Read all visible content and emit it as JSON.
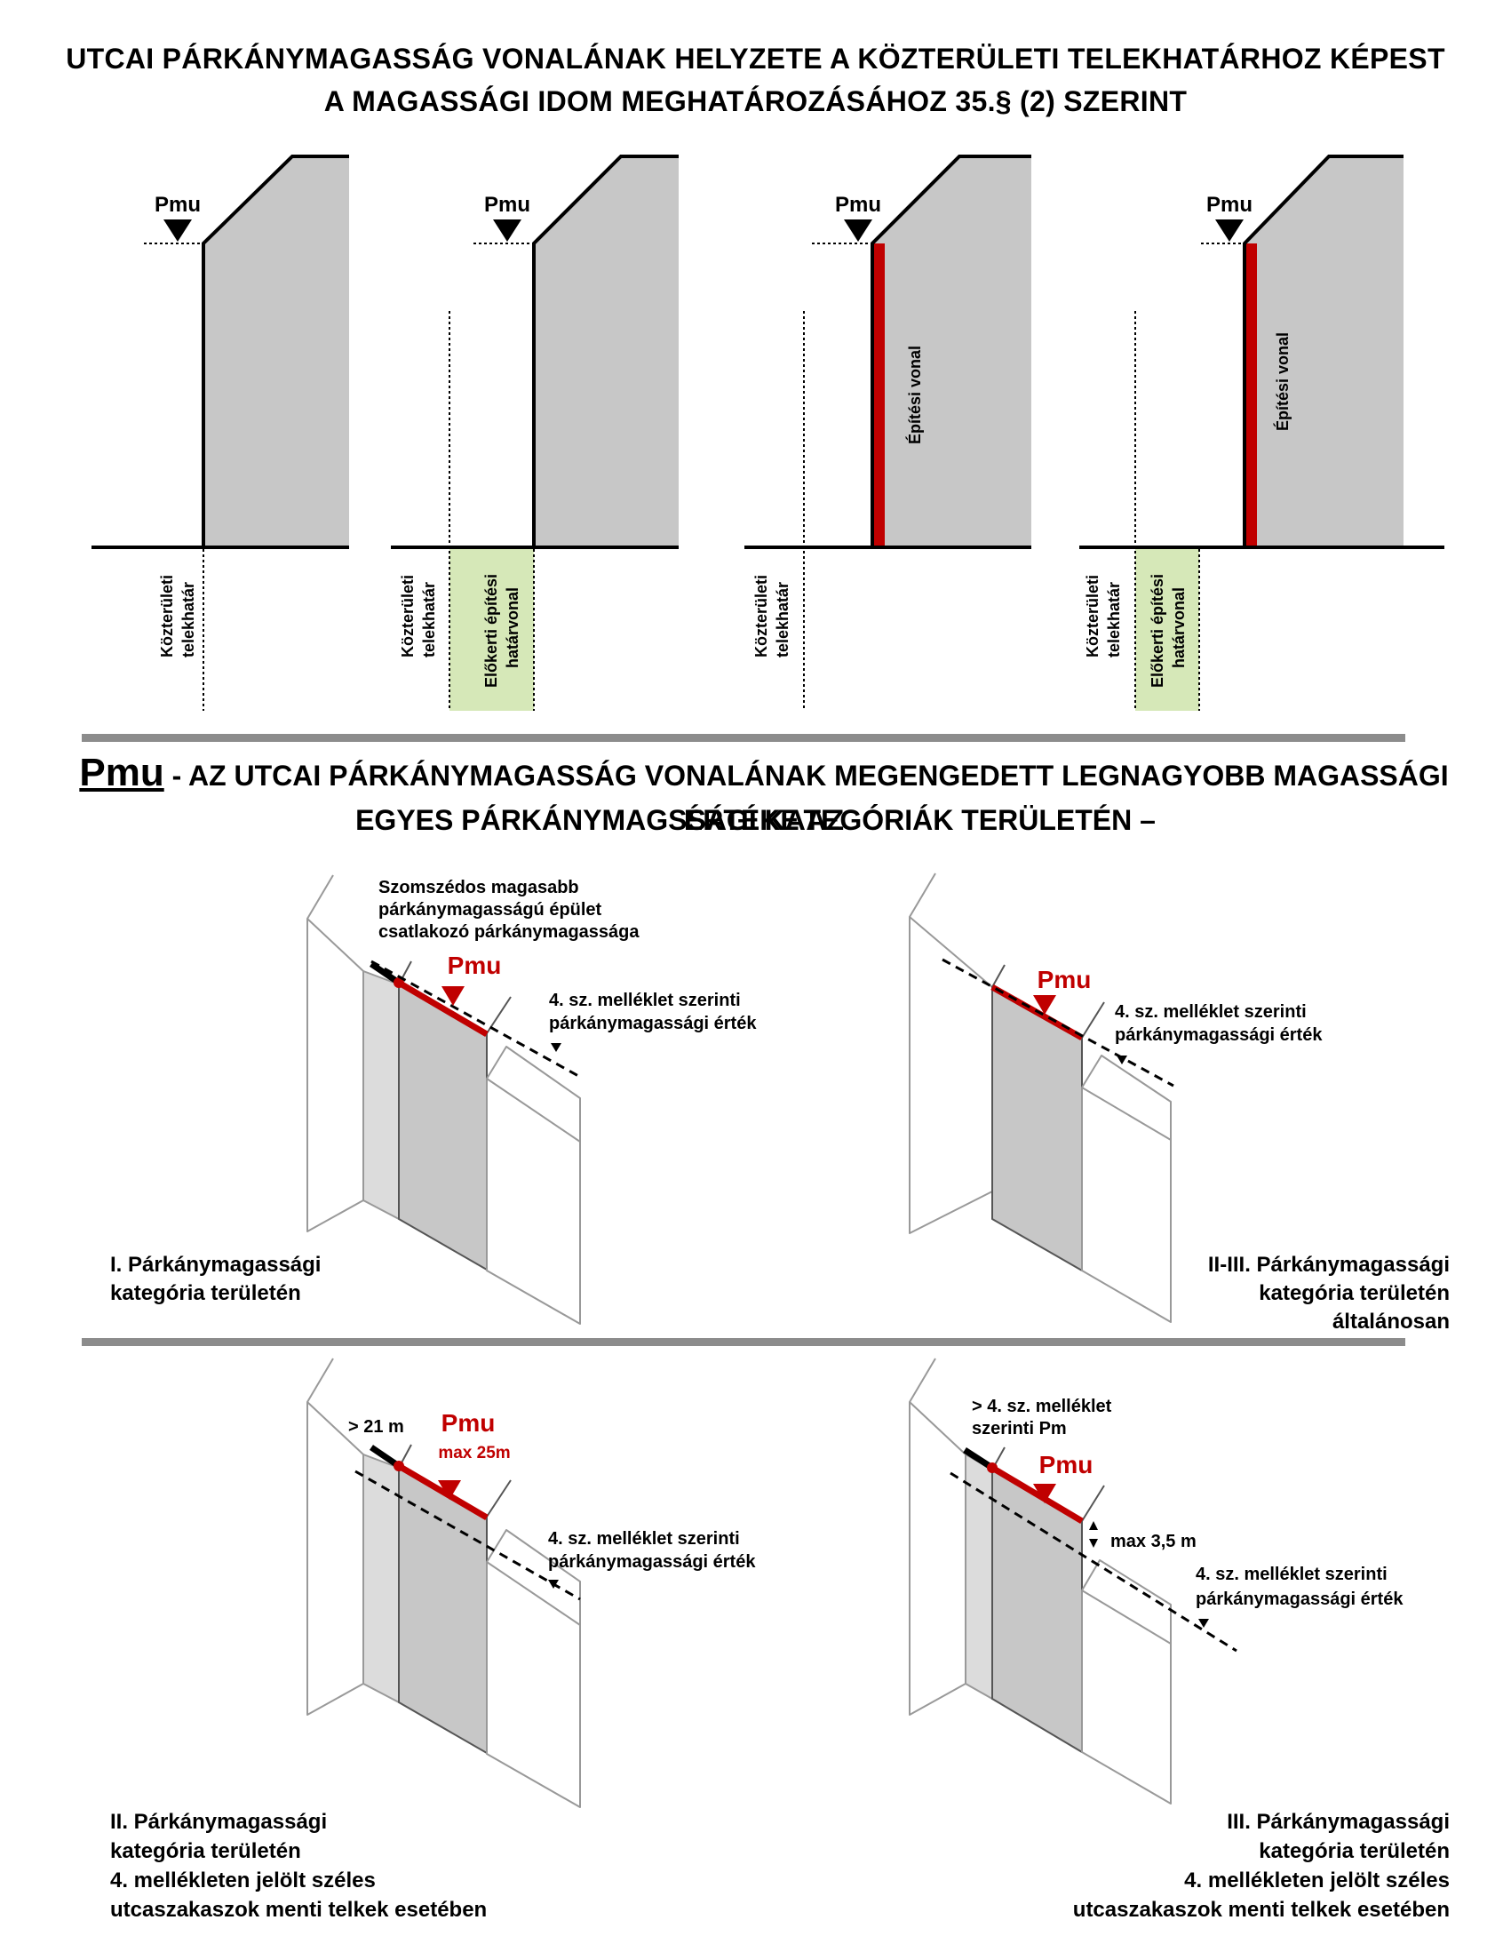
{
  "title": {
    "line1": "UTCAI PÁRKÁNYMAGASSÁG VONALÁNAK HELYZETE A KÖZTERÜLETI TELEKHATÁRHOZ KÉPEST",
    "line2": "A MAGASSÁGI IDOM MEGHATÁROZÁSÁHOZ  35.§ (2) SZERINT"
  },
  "top_panels": {
    "pmu_label": "Pmu",
    "kozteruleti_line1": "Közterületi",
    "kozteruleti_line2": "telekhatár",
    "elokerti_line1": "Előkerti építési",
    "elokerti_line2": "határvonal",
    "epitesi_vonal": "Építési vonal"
  },
  "pmu_heading": {
    "abbr": "Pmu",
    "line1": " - AZ UTCAI PÁRKÁNYMAGASSÁG VONALÁNAK MEGENGEDETT LEGNAGYOBB MAGASSÁGI ÉRTÉKE AZ",
    "line2": "EGYES PÁRKÁNYMAGSSÁGI KATEGÓRIÁK TERÜLETÉN –"
  },
  "iso": {
    "pmu": "Pmu",
    "pmu_clipped": "Pmu",
    "melleklet_line1": "4. sz. melléklet szerinti",
    "melleklet_line2": "párkánymagassági érték",
    "szomszedos_1": "Szomszédos magasabb",
    "szomszedos_2": "párkánymagasságú épület",
    "szomszedos_3": "csatlakozó párkánymagassága",
    "gt21": "> 21 m",
    "max25": "max 25m",
    "gt4_1": "> 4. sz. melléklet",
    "gt4_2": "szerinti Pm",
    "max35": "max 3,5 m"
  },
  "captions": {
    "c1": [
      "I. Párkánymagassági",
      "kategória területén"
    ],
    "c2": [
      "II-III. Párkánymagassági",
      "kategória területén",
      "általánosan"
    ],
    "c3": [
      "II. Párkánymagassági",
      "kategória területén",
      "4. mellékleten jelölt széles",
      "utcaszakaszok  menti telkek esetében"
    ],
    "c4": [
      "III. Párkánymagassági",
      "kategória területén",
      "4. mellékleten jelölt széles",
      "utcaszakaszok  menti telkek esetében"
    ]
  },
  "colors": {
    "building_fill": "#c7c7c7",
    "red": "#c00000",
    "green_zone": "#d6e8b8",
    "divider": "#8c8c8c",
    "light_face": "#dcdcdc"
  }
}
